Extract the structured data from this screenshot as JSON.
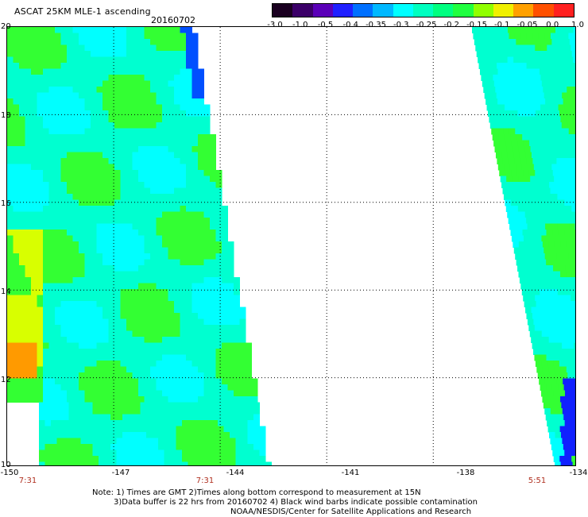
{
  "header": {
    "title": "ASCAT 25KM MLE-1 ascending",
    "date": "20160702"
  },
  "colorbar": {
    "ticks": [
      "-3.0",
      "-1.0",
      "-0.5",
      "-0.4",
      "-0.35",
      "-0.3",
      "-0.25",
      "-0.2",
      "-0.15",
      "-0.1",
      "-0.05",
      "0.0",
      "1.0"
    ],
    "colors": [
      "#1a0020",
      "#3b0068",
      "#5a00b8",
      "#2020ff",
      "#0070ff",
      "#00b8ff",
      "#00ffff",
      "#00ffc0",
      "#00ff80",
      "#20ff40",
      "#90ff00",
      "#f0f000",
      "#ffa000",
      "#ff5000",
      "#ff2020"
    ]
  },
  "map": {
    "lat_labels": [
      "20",
      "18",
      "16",
      "14",
      "12",
      "10"
    ],
    "lon_labels": [
      "-150",
      "-147",
      "-144",
      "-141",
      "-138",
      "-134"
    ],
    "lat_range": [
      10,
      20
    ],
    "lon_range": [
      -150,
      -134
    ],
    "grid_lons": [
      -147,
      -144,
      -141,
      -138
    ],
    "grid_lats": [
      12,
      14,
      16,
      18
    ],
    "swath_colors": {
      "green": "#33ff33",
      "cyan": "#00ffd0",
      "light_cyan": "#00ffff",
      "blue": "#0050ff",
      "dark_blue": "#1020ff",
      "orange": "#ff9a00",
      "yellow": "#d8ff00"
    }
  },
  "times": [
    "7:31",
    "7:31",
    "5:51"
  ],
  "notes": [
    "Note: 1) Times are GMT 2)Times along bottom correspond to measurement at 15N",
    "3)Data buffer is 22 hrs from 20160702 4) Black wind barbs indicate possible contamination",
    "NOAA/NESDIS/Center for Satellite Applications and Research"
  ]
}
